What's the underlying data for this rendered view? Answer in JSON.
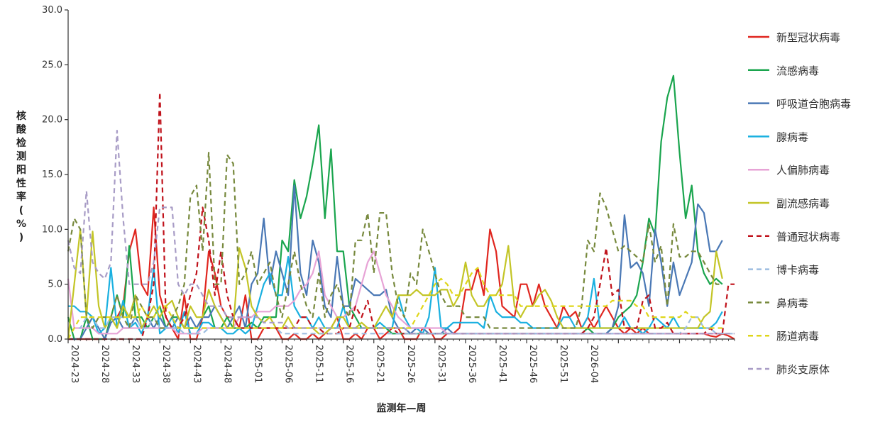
{
  "chart_data": {
    "type": "line",
    "xlabel": "监测年—周",
    "ylabel": "核酸检测阳性率(%)",
    "ylim": [
      0,
      30
    ],
    "yticks": [
      "0.0",
      "5.0",
      "10.0",
      "15.0",
      "20.0",
      "25.0",
      "30.0"
    ],
    "xticks": [
      "2024-23",
      "2024-28",
      "2024-33",
      "2024-38",
      "2024-43",
      "2024-48",
      "2025-01",
      "2025-06",
      "2025-11",
      "2025-16",
      "2025-21",
      "2025-26",
      "2025-31",
      "2025-36",
      "2025-41",
      "2025-46",
      "2025-51",
      "2026-04"
    ],
    "grid": false,
    "legend_position": "right",
    "series": [
      {
        "name": "新型冠状病毒",
        "color": "#e0261f",
        "dash": false,
        "values": [
          0.0,
          0.0,
          0.0,
          0.0,
          0.0,
          0.0,
          0.0,
          2.0,
          2.0,
          3.0,
          8.0,
          10.0,
          5.0,
          4.0,
          12.0,
          4.0,
          2.0,
          1.0,
          0.0,
          4.0,
          0.0,
          0.0,
          2.0,
          8.0,
          6.0,
          3.0,
          2.0,
          2.0,
          1.0,
          4.0,
          0.0,
          0.0,
          1.0,
          1.0,
          1.0,
          0.0,
          0.0,
          0.5,
          0.0,
          0.0,
          0.5,
          0.0,
          0.5,
          1.0,
          2.0,
          0.0,
          0.0,
          0.5,
          0.0,
          1.0,
          1.0,
          0.0,
          0.5,
          1.0,
          1.0,
          0.0,
          0.0,
          0.0,
          1.0,
          1.0,
          0.0,
          0.0,
          0.5,
          0.5,
          1.0,
          4.5,
          4.5,
          6.5,
          4.0,
          10.0,
          8.0,
          3.0,
          2.5,
          2.0,
          5.0,
          5.0,
          3.0,
          5.0,
          3.0,
          2.0,
          1.0,
          3.0,
          2.0,
          2.5,
          1.0,
          2.0,
          1.0,
          2.0,
          3.0,
          2.0,
          1.0,
          0.5,
          1.0,
          0.5,
          1.0,
          0.5,
          0.5,
          0.5,
          0.5,
          0.5,
          0.5,
          0.5,
          0.5,
          0.5,
          0.5,
          0.3,
          0.2,
          0.5,
          0.3,
          0.0
        ]
      },
      {
        "name": "流感病毒",
        "color": "#1aa54e",
        "dash": false,
        "values": [
          2.0,
          0.0,
          0.0,
          2.0,
          0.0,
          0.0,
          0.0,
          2.0,
          4.0,
          2.0,
          8.5,
          2.0,
          2.0,
          1.0,
          2.0,
          3.0,
          1.0,
          2.0,
          2.0,
          1.0,
          1.0,
          1.0,
          2.0,
          3.0,
          1.0,
          1.0,
          2.0,
          1.0,
          1.0,
          1.0,
          1.5,
          1.0,
          2.0,
          2.0,
          2.0,
          9.0,
          8.0,
          14.5,
          11.0,
          13.0,
          16.0,
          19.5,
          11.0,
          17.3,
          8.0,
          8.0,
          3.0,
          2.0,
          1.0,
          1.0,
          1.0,
          1.0,
          1.0,
          0.5,
          0.5,
          0.5,
          0.5,
          0.5,
          0.5,
          0.5,
          0.5,
          0.5,
          0.5,
          0.5,
          0.5,
          0.5,
          0.5,
          0.5,
          0.5,
          0.5,
          0.5,
          0.5,
          0.5,
          0.5,
          0.5,
          0.5,
          0.5,
          0.5,
          0.5,
          0.5,
          0.5,
          0.5,
          0.5,
          0.5,
          0.5,
          1.0,
          0.5,
          0.5,
          0.5,
          1.0,
          2.0,
          2.5,
          3.0,
          4.0,
          7.0,
          11.0,
          9.5,
          18.0,
          22.0,
          24.0,
          17.0,
          11.0,
          14.0,
          8.0,
          6.0,
          5.0,
          5.5,
          5.0
        ]
      },
      {
        "name": "呼吸道合胞病毒",
        "color": "#4a78b5",
        "dash": false,
        "values": [
          0.0,
          0.0,
          0.0,
          1.0,
          2.0,
          1.0,
          0.0,
          1.5,
          2.0,
          1.0,
          1.0,
          2.0,
          1.0,
          2.0,
          1.0,
          2.0,
          1.0,
          1.0,
          2.0,
          1.0,
          2.0,
          1.0,
          2.0,
          2.0,
          3.0,
          2.0,
          1.0,
          2.0,
          3.0,
          1.0,
          5.0,
          6.0,
          11.0,
          5.0,
          8.0,
          6.0,
          4.0,
          14.0,
          6.0,
          4.0,
          9.0,
          7.0,
          3.0,
          2.0,
          7.5,
          3.0,
          3.0,
          5.5,
          5.0,
          4.5,
          4.0,
          4.0,
          4.5,
          2.0,
          1.0,
          1.0,
          0.5,
          1.0,
          1.0,
          0.5,
          0.5,
          0.5,
          1.0,
          0.5,
          0.5,
          0.5,
          0.5,
          0.5,
          0.5,
          0.5,
          0.5,
          0.5,
          0.5,
          0.5,
          0.5,
          0.5,
          0.5,
          0.5,
          0.5,
          0.5,
          0.5,
          0.5,
          0.5,
          0.5,
          0.5,
          0.5,
          0.5,
          0.5,
          0.5,
          1.0,
          3.0,
          11.3,
          6.5,
          7.0,
          6.0,
          3.0,
          10.0,
          7.0,
          3.0,
          7.0,
          4.0,
          5.5,
          7.0,
          12.3,
          11.5,
          8.0,
          8.0,
          9.0
        ]
      },
      {
        "name": "腺病毒",
        "color": "#1ab0e0",
        "dash": false,
        "values": [
          3.0,
          3.0,
          2.5,
          2.5,
          2.0,
          0.5,
          1.0,
          6.5,
          1.0,
          3.5,
          1.0,
          1.5,
          0.5,
          2.0,
          6.5,
          0.5,
          1.0,
          2.0,
          0.5,
          2.5,
          0.5,
          0.5,
          1.5,
          1.5,
          1.0,
          1.0,
          0.5,
          0.5,
          1.0,
          0.5,
          1.0,
          3.0,
          5.0,
          6.0,
          4.0,
          4.0,
          7.5,
          3.0,
          2.0,
          2.0,
          1.0,
          2.0,
          1.0,
          1.0,
          1.0,
          3.0,
          1.0,
          1.0,
          1.0,
          1.0,
          1.0,
          1.5,
          1.0,
          1.0,
          4.0,
          2.0,
          1.0,
          1.0,
          0.5,
          2.0,
          6.5,
          1.0,
          1.0,
          1.5,
          1.5,
          1.5,
          1.5,
          1.5,
          1.0,
          4.0,
          2.5,
          2.0,
          2.0,
          2.0,
          1.5,
          1.5,
          1.0,
          1.0,
          1.0,
          1.0,
          1.0,
          2.0,
          2.0,
          1.0,
          1.0,
          2.0,
          5.5,
          1.0,
          1.0,
          1.0,
          1.0,
          2.0,
          1.0,
          1.0,
          0.5,
          1.0,
          2.0,
          1.5,
          1.0,
          2.0,
          1.0,
          1.0,
          1.0,
          1.0,
          1.0,
          1.0,
          1.5,
          2.5
        ]
      },
      {
        "name": "人偏肺病毒",
        "color": "#e7a3d6",
        "dash": false,
        "values": [
          5.5,
          1.0,
          1.0,
          1.0,
          1.0,
          0.5,
          0.5,
          0.5,
          0.5,
          1.0,
          1.0,
          1.0,
          1.0,
          1.0,
          1.0,
          1.0,
          1.0,
          1.0,
          0.5,
          0.5,
          0.5,
          0.5,
          1.0,
          1.0,
          1.0,
          1.0,
          1.0,
          1.0,
          2.0,
          2.0,
          2.0,
          2.5,
          2.5,
          2.5,
          3.0,
          3.0,
          3.0,
          3.5,
          4.5,
          5.0,
          6.0,
          8.0,
          4.0,
          3.0,
          2.0,
          2.0,
          2.5,
          3.0,
          5.0,
          7.0,
          8.0,
          6.0,
          4.0,
          3.0,
          2.0,
          1.5,
          1.0,
          1.0,
          1.0,
          1.0,
          1.0,
          1.0,
          0.5,
          0.5,
          0.5,
          0.5,
          0.5,
          0.5,
          0.5,
          0.5,
          0.5,
          0.5,
          0.5,
          0.5,
          0.5,
          0.5,
          0.5,
          0.5,
          0.5,
          0.5,
          0.5,
          0.5,
          0.5,
          0.5,
          0.5,
          0.5,
          0.5,
          0.5,
          0.5,
          0.5,
          0.5,
          0.5,
          0.5,
          0.5,
          0.5,
          0.5,
          0.5,
          0.5,
          0.5,
          0.5,
          0.5,
          0.5,
          0.5,
          0.5,
          0.5,
          0.5,
          0.5,
          0.5
        ]
      },
      {
        "name": "副流感病毒",
        "color": "#c3c526",
        "dash": false,
        "values": [
          0.0,
          5.0,
          10.0,
          2.0,
          9.8,
          3.0,
          1.0,
          2.0,
          1.0,
          3.0,
          2.0,
          4.0,
          1.0,
          2.0,
          3.0,
          2.0,
          3.0,
          3.5,
          2.0,
          1.0,
          3.0,
          2.0,
          2.0,
          4.5,
          3.0,
          2.0,
          1.0,
          1.0,
          8.3,
          6.5,
          3.0,
          2.0,
          1.5,
          2.0,
          1.0,
          1.0,
          2.0,
          1.0,
          1.0,
          1.0,
          1.0,
          0.5,
          0.5,
          1.0,
          2.0,
          2.0,
          1.0,
          1.0,
          1.5,
          1.0,
          1.0,
          2.0,
          3.0,
          2.0,
          4.0,
          4.0,
          4.0,
          4.5,
          4.0,
          4.0,
          4.0,
          4.5,
          4.5,
          3.0,
          4.0,
          7.0,
          4.0,
          3.0,
          3.0,
          4.0,
          4.0,
          5.0,
          8.5,
          3.0,
          2.0,
          3.0,
          3.0,
          4.0,
          4.5,
          3.5,
          2.0,
          1.0,
          1.0,
          1.0,
          1.0,
          1.0,
          1.0,
          1.0,
          1.0,
          1.0,
          1.0,
          1.0,
          1.0,
          1.0,
          1.0,
          1.0,
          1.0,
          1.0,
          1.0,
          1.0,
          1.0,
          1.0,
          1.0,
          1.0,
          2.0,
          2.5,
          8.0,
          5.5
        ]
      },
      {
        "name": "普通冠状病毒",
        "color": "#c0121b",
        "dash": true,
        "values": [
          0.0,
          0.0,
          0.0,
          0.0,
          0.0,
          0.0,
          0.0,
          0.0,
          0.0,
          0.0,
          0.0,
          0.0,
          0.0,
          2.0,
          5.0,
          22.5,
          2.0,
          1.0,
          1.0,
          2.0,
          4.0,
          6.0,
          12.0,
          9.0,
          4.0,
          8.0,
          4.0,
          2.0,
          1.0,
          1.0,
          1.0,
          1.0,
          1.0,
          1.0,
          1.0,
          1.0,
          1.0,
          1.0,
          2.0,
          2.0,
          1.0,
          1.0,
          0.5,
          0.5,
          0.5,
          1.0,
          1.0,
          3.0,
          2.0,
          3.5,
          1.0,
          1.0,
          1.0,
          1.0,
          0.5,
          0.5,
          0.5,
          0.5,
          0.5,
          0.5,
          0.5,
          0.5,
          0.5,
          0.5,
          0.5,
          0.5,
          0.5,
          0.5,
          0.5,
          0.5,
          0.5,
          0.5,
          0.5,
          0.5,
          0.5,
          0.5,
          0.5,
          0.5,
          0.5,
          0.5,
          0.5,
          0.5,
          0.5,
          0.5,
          0.5,
          1.0,
          2.0,
          5.0,
          8.3,
          4.0,
          4.5,
          1.0,
          1.0,
          1.0,
          3.5,
          4.0,
          1.0,
          1.0,
          1.5,
          0.5,
          0.5,
          0.5,
          0.5,
          0.5,
          0.5,
          1.0,
          0.5,
          0.5,
          5.0,
          5.0
        ]
      },
      {
        "name": "博卡病毒",
        "color": "#9dbde0",
        "dash": true,
        "values": [
          0.0,
          1.0,
          1.0,
          2.0,
          2.0,
          1.0,
          1.0,
          2.0,
          2.0,
          2.0,
          1.0,
          2.0,
          1.0,
          1.0,
          2.0,
          1.0,
          1.0,
          1.0,
          1.0,
          0.5,
          0.5,
          0.5,
          0.5,
          1.0,
          1.0,
          1.0,
          1.0,
          1.0,
          1.0,
          1.0,
          1.0,
          1.0,
          1.0,
          1.0,
          1.0,
          0.5,
          0.5,
          0.5,
          0.5,
          0.5,
          0.5,
          0.5,
          0.5,
          0.5,
          0.5,
          0.5,
          0.5,
          0.5,
          0.5,
          0.5,
          0.5,
          0.5,
          0.5,
          0.5,
          0.5,
          0.5,
          0.5,
          0.5,
          0.5,
          0.5,
          0.5,
          0.5,
          0.5,
          0.5,
          0.5,
          0.5,
          0.5,
          0.5,
          0.5,
          0.5,
          0.5,
          0.5,
          0.5,
          0.5,
          0.5,
          0.5,
          0.5,
          0.5,
          0.5,
          0.5,
          0.5,
          0.5,
          0.5,
          0.5,
          0.5,
          0.5,
          0.5,
          0.5,
          0.5,
          0.5,
          0.5,
          0.5,
          0.5,
          0.5,
          0.5,
          0.5,
          0.5,
          0.5,
          0.5,
          0.5,
          0.5,
          1.0,
          2.0,
          2.0,
          1.0,
          1.0,
          0.5,
          0.5,
          0.5,
          0.5
        ]
      },
      {
        "name": "鼻病毒",
        "color": "#77893d",
        "dash": true,
        "values": [
          8.0,
          11.0,
          10.0,
          2.0,
          1.0,
          2.0,
          2.0,
          2.0,
          4.0,
          2.0,
          1.0,
          4.0,
          3.0,
          2.0,
          2.0,
          1.0,
          1.0,
          2.0,
          3.0,
          5.0,
          13.0,
          14.0,
          8.0,
          17.0,
          5.0,
          5.0,
          16.8,
          16.0,
          5.0,
          6.0,
          8.0,
          5.0,
          6.0,
          7.0,
          4.0,
          2.0,
          5.0,
          8.0,
          5.0,
          3.0,
          2.0,
          6.0,
          2.0,
          4.0,
          5.0,
          3.0,
          2.0,
          9.0,
          9.0,
          11.5,
          6.0,
          11.5,
          11.5,
          6.0,
          3.0,
          2.0,
          6.0,
          5.0,
          10.0,
          8.0,
          6.0,
          4.0,
          3.0,
          3.0,
          3.0,
          2.0,
          2.0,
          2.0,
          2.0,
          1.0,
          1.0,
          1.0,
          1.0,
          1.0,
          1.0,
          1.0,
          1.0,
          1.0,
          1.0,
          1.0,
          1.0,
          1.0,
          1.0,
          1.0,
          3.0,
          9.0,
          8.0,
          13.3,
          12.0,
          10.0,
          8.0,
          8.5,
          8.0,
          7.5,
          7.0,
          10.5,
          7.0,
          8.5,
          3.0,
          10.5,
          7.5,
          7.5,
          8.0,
          8.0,
          7.0,
          6.0,
          5.0,
          5.0
        ]
      },
      {
        "name": "肠道病毒",
        "color": "#dfd61a",
        "dash": true,
        "values": [
          0.0,
          1.0,
          2.0,
          2.0,
          2.0,
          2.0,
          2.0,
          2.0,
          2.0,
          2.0,
          2.0,
          2.0,
          3.0,
          2.0,
          2.0,
          3.0,
          3.0,
          2.0,
          1.0,
          1.0,
          1.0,
          1.0,
          1.0,
          1.0,
          1.0,
          1.0,
          1.0,
          1.0,
          1.0,
          1.0,
          1.0,
          1.0,
          1.0,
          1.0,
          1.0,
          1.0,
          1.0,
          1.0,
          1.0,
          1.0,
          1.0,
          1.0,
          1.0,
          1.0,
          1.0,
          1.0,
          1.0,
          1.0,
          1.0,
          1.0,
          1.0,
          1.0,
          1.0,
          1.0,
          1.0,
          1.0,
          1.0,
          2.0,
          3.0,
          4.0,
          5.0,
          5.5,
          5.0,
          4.0,
          4.0,
          5.0,
          6.0,
          6.5,
          5.0,
          4.0,
          4.0,
          4.0,
          4.0,
          4.0,
          3.0,
          3.0,
          3.0,
          3.0,
          3.0,
          3.0,
          3.0,
          3.0,
          3.0,
          3.0,
          3.0,
          3.0,
          3.0,
          3.0,
          3.0,
          3.5,
          3.5,
          3.5,
          3.5,
          3.0,
          3.0,
          2.0,
          2.0,
          2.0,
          2.0,
          2.0,
          2.0,
          2.5,
          2.0,
          2.0,
          1.0,
          1.0,
          1.0,
          1.0
        ]
      },
      {
        "name": "肺炎支原体",
        "color": "#a89cc6",
        "dash": true,
        "values": [
          9.0,
          6.5,
          6.0,
          13.5,
          7.0,
          6.0,
          5.5,
          7.0,
          19.0,
          11.0,
          5.0,
          5.0,
          5.0,
          5.0,
          7.0,
          12.0,
          12.0,
          12.0,
          5.0,
          4.0,
          5.0,
          5.0,
          4.0,
          3.0,
          3.0,
          3.0,
          2.0,
          2.0,
          2.0,
          2.0,
          2.0,
          2.0,
          1.5,
          1.5,
          1.5,
          1.5,
          1.0,
          1.0,
          1.0,
          1.0,
          1.0,
          1.0,
          1.0,
          1.0,
          1.0,
          1.0,
          1.0,
          1.0,
          1.0,
          1.0,
          1.0,
          1.0,
          1.0,
          1.0,
          1.0,
          1.0,
          0.5,
          0.5,
          0.5,
          0.5,
          0.5,
          0.5,
          0.5,
          0.5,
          0.5,
          0.5,
          0.5,
          0.5,
          0.5,
          0.5,
          0.5,
          0.5,
          0.5,
          0.5,
          0.5,
          0.5,
          0.5,
          0.5,
          0.5,
          0.5,
          0.5,
          0.5,
          0.5,
          0.5,
          0.5,
          0.5,
          0.5,
          0.5,
          0.5,
          0.5,
          0.5,
          0.5,
          0.5,
          0.5,
          0.5,
          0.5,
          0.5,
          0.5,
          0.5,
          0.5,
          0.5,
          0.5,
          0.5,
          0.5,
          0.5,
          0.5,
          0.5,
          0.5,
          0.5,
          0.5
        ]
      }
    ]
  }
}
